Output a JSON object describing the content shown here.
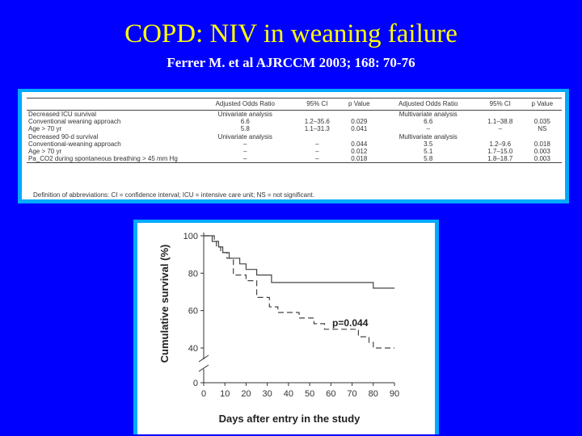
{
  "slide": {
    "title": "COPD: NIV in weaning failure",
    "subtitle": "Ferrer M. et al AJRCCM 2003; 168: 70-76"
  },
  "table": {
    "headers": [
      "",
      "Adjusted Odds Ratio",
      "95% CI",
      "p Value",
      "Adjusted Odds Ratio",
      "95% CI",
      "p Value"
    ],
    "rows": [
      [
        "Decreased ICU survival",
        "Univariate analysis",
        "",
        "",
        "Multivariate analysis",
        "",
        ""
      ],
      [
        "Conventional weaning approach",
        "6.6",
        "1.2–35.6",
        "0.029",
        "6.6",
        "1.1–38.8",
        "0.035"
      ],
      [
        "Age > 70 yr",
        "5.8",
        "1.1–31.3",
        "0.041",
        "–",
        "–",
        "NS"
      ],
      [
        "Decreased 90-d survival",
        "Univariate analysis",
        "",
        "",
        "Multivariate analysis",
        "",
        ""
      ],
      [
        "Conventional-weaning approach",
        "–",
        "–",
        "0.044",
        "3.5",
        "1.2–9.6",
        "0.018"
      ],
      [
        "Age > 70 yr",
        "–",
        "–",
        "0.012",
        "5.1",
        "1.7–15.0",
        "0.003"
      ],
      [
        "Pa_CO2 during spontaneous breathing > 45 mm Hg",
        "–",
        "–",
        "0.018",
        "5.8",
        "1.8–18.7",
        "0.003"
      ]
    ],
    "footnote": "Definition of abbreviations: CI = confidence interval; ICU = intensive care unit; NS = not significant."
  },
  "chart_data": {
    "type": "line",
    "xlabel": "Days after entry in the study",
    "ylabel": "Cumulative survival (%)",
    "xticks": [
      0,
      10,
      20,
      30,
      40,
      50,
      60,
      70,
      80,
      90
    ],
    "yticks": [
      0,
      40,
      60,
      80,
      100
    ],
    "xlim": [
      0,
      90
    ],
    "ylim": [
      0,
      100
    ],
    "y_axis_break": true,
    "annotation": "p=0.044",
    "series": [
      {
        "style": "solid",
        "x": [
          0,
          4,
          4,
          7,
          7,
          9,
          9,
          12,
          12,
          17,
          17,
          20,
          20,
          25,
          25,
          32,
          32,
          80,
          80,
          90
        ],
        "y": [
          100,
          100,
          97,
          97,
          94,
          94,
          91,
          91,
          88,
          88,
          85,
          85,
          82,
          82,
          79,
          79,
          75,
          75,
          72,
          72
        ]
      },
      {
        "style": "dashed",
        "x": [
          0,
          5,
          5,
          6,
          6,
          8,
          8,
          11,
          11,
          14,
          14,
          20,
          20,
          25,
          25,
          31,
          31,
          35,
          35,
          45,
          45,
          52,
          52,
          57,
          57,
          73,
          73,
          78,
          78,
          80,
          80,
          90
        ],
        "y": [
          100,
          100,
          97,
          97,
          94,
          94,
          91,
          91,
          88,
          88,
          79,
          79,
          76,
          76,
          67,
          67,
          62,
          62,
          59,
          59,
          56,
          56,
          53,
          53,
          50,
          50,
          46,
          46,
          43,
          43,
          40,
          40
        ]
      }
    ]
  }
}
